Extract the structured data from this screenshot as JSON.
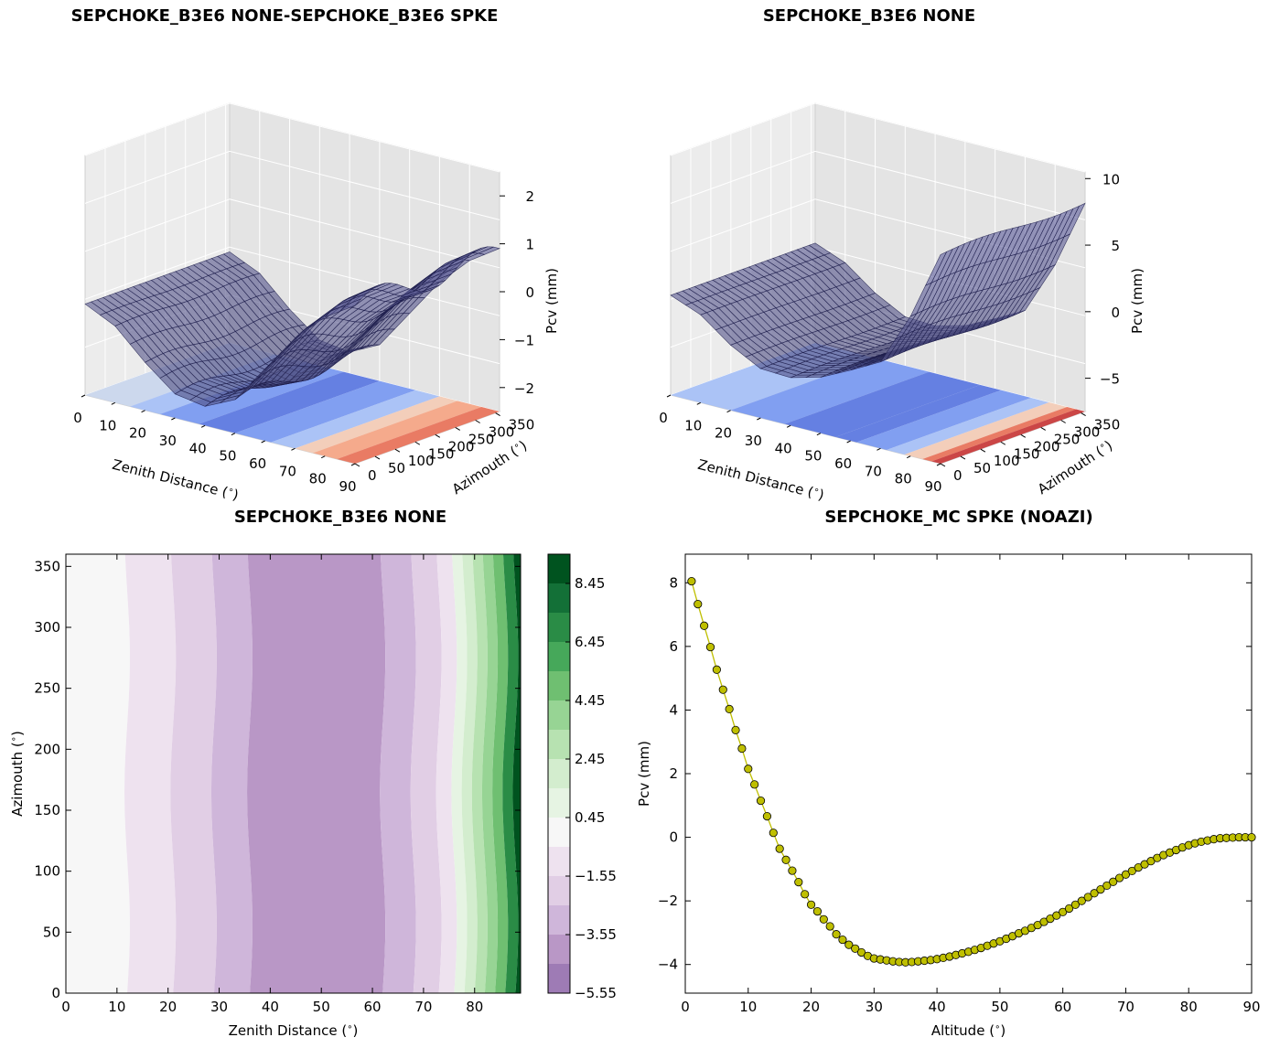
{
  "titles": {
    "tl": "SEPCHOKE_B3E6 NONE-SEPCHOKE_B3E6 SPKE",
    "tr": "SEPCHOKE_B3E6 NONE",
    "bl": "SEPCHOKE_B3E6 NONE",
    "br": "SEPCHOKE_MC SPKE  (NOAZI)"
  },
  "chart_data": [
    {
      "type": "surface",
      "title": "SEPCHOKE_B3E6 NONE-SEPCHOKE_B3E6 SPKE",
      "xlabel": "Zenith Distance ($^\\circ$)",
      "xlabel_text": "Zenith Distance (",
      "xlabel_end": ")",
      "ylabel_text": "Azimouth (",
      "ylabel_end": ")",
      "zlabel": "Pcv (mm)",
      "x_ticks": [
        "0",
        "10",
        "20",
        "30",
        "40",
        "50",
        "60",
        "70",
        "80",
        "90"
      ],
      "y_ticks": [
        "0",
        "50",
        "100",
        "150",
        "200",
        "250",
        "300",
        "350"
      ],
      "z_ticks": [
        "−2",
        "−1",
        "0",
        "1",
        "2"
      ],
      "profile_zenith": [
        0,
        10,
        20,
        30,
        40,
        50,
        60,
        70,
        80,
        90
      ],
      "profile_pcv": [
        -0.6,
        -0.9,
        -1.5,
        -2.0,
        -2.1,
        -1.8,
        -1.0,
        -0.2,
        0.4,
        0.8
      ],
      "zlim": [
        -2.5,
        2.5
      ]
    },
    {
      "type": "surface",
      "title": "SEPCHOKE_B3E6 NONE",
      "xlabel_text": "Zenith Distance (",
      "xlabel_end": ")",
      "ylabel_text": "Azimouth (",
      "ylabel_end": ")",
      "zlabel": "Pcv (mm)",
      "x_ticks": [
        "0",
        "10",
        "20",
        "30",
        "40",
        "50",
        "60",
        "70",
        "80",
        "90"
      ],
      "y_ticks": [
        "0",
        "50",
        "100",
        "150",
        "200",
        "250",
        "300",
        "350"
      ],
      "z_ticks": [
        "−5",
        "0",
        "5",
        "10"
      ],
      "profile_zenith": [
        0,
        10,
        20,
        30,
        40,
        50,
        60,
        70,
        80,
        90
      ],
      "profile_pcv": [
        0.0,
        -0.9,
        -2.6,
        -3.8,
        -3.9,
        -3.3,
        -2.2,
        -1.0,
        3.0,
        8.2
      ],
      "zlim": [
        -7.5,
        10.5
      ]
    },
    {
      "type": "heatmap",
      "title": "SEPCHOKE_B3E6 NONE",
      "xlabel_text": "Zenith Distance (",
      "xlabel_end": ")",
      "ylabel_text": "Azimouth (",
      "ylabel_end": ")",
      "x_ticks": [
        "0",
        "10",
        "20",
        "30",
        "40",
        "50",
        "60",
        "70",
        "80"
      ],
      "y_ticks": [
        "0",
        "50",
        "100",
        "150",
        "200",
        "250",
        "300",
        "350"
      ],
      "xlim": [
        0,
        89
      ],
      "ylim": [
        0,
        360
      ],
      "colorbar_ticks": [
        "8.45",
        "6.45",
        "4.45",
        "2.45",
        "0.45",
        "−1.55",
        "−3.55",
        "−5.55"
      ],
      "colorbar_levels": [
        -5.55,
        -4.55,
        -3.55,
        -2.55,
        -1.55,
        -0.55,
        0.45,
        1.45,
        2.45,
        3.45,
        4.45,
        5.45,
        6.45,
        7.45,
        8.45,
        9.45
      ],
      "colorbar_colors": [
        "#9e7bb5",
        "#b997c6",
        "#cfb6da",
        "#e1cee5",
        "#eee2ef",
        "#f7f7f7",
        "#e6f4e3",
        "#d3edce",
        "#b7e2b1",
        "#97d494",
        "#6fbf71",
        "#46a85a",
        "#2a8c46",
        "#137037",
        "#00531f"
      ],
      "bands_zenith_edges": [
        0,
        12,
        21,
        29,
        36,
        62,
        68,
        73,
        76,
        78,
        80,
        82,
        84,
        86,
        88,
        89
      ],
      "bands_level_index": [
        5,
        4,
        3,
        2,
        1,
        2,
        3,
        4,
        6,
        7,
        8,
        9,
        10,
        12,
        14
      ]
    },
    {
      "type": "line",
      "title": "SEPCHOKE_MC SPKE  (NOAZI)",
      "xlabel_text": "Altitude (",
      "xlabel_end": ")",
      "ylabel": "Pcv (mm)",
      "xlim": [
        0,
        90
      ],
      "ylim": [
        -4.9,
        8.9
      ],
      "x_ticks": [
        0,
        10,
        20,
        30,
        40,
        50,
        60,
        70,
        80,
        90
      ],
      "y_ticks": [
        -4,
        -2,
        0,
        2,
        4,
        6,
        8
      ],
      "line_color": "#bfbf00",
      "marker_color": "#bfbf00",
      "x": [
        1,
        2,
        3,
        4,
        5,
        6,
        7,
        8,
        9,
        10,
        11,
        12,
        13,
        14,
        15,
        16,
        17,
        18,
        19,
        20,
        21,
        22,
        23,
        24,
        25,
        26,
        27,
        28,
        29,
        30,
        31,
        32,
        33,
        34,
        35,
        36,
        37,
        38,
        39,
        40,
        41,
        42,
        43,
        44,
        45,
        46,
        47,
        48,
        49,
        50,
        51,
        52,
        53,
        54,
        55,
        56,
        57,
        58,
        59,
        60,
        61,
        62,
        63,
        64,
        65,
        66,
        67,
        68,
        69,
        70,
        71,
        72,
        73,
        74,
        75,
        76,
        77,
        78,
        79,
        80,
        81,
        82,
        83,
        84,
        85,
        86,
        87,
        88,
        89,
        90
      ],
      "y": [
        8.05,
        7.33,
        6.65,
        5.98,
        5.27,
        4.64,
        4.03,
        3.37,
        2.79,
        2.15,
        1.66,
        1.15,
        0.66,
        0.14,
        -0.36,
        -0.71,
        -1.05,
        -1.41,
        -1.79,
        -2.12,
        -2.33,
        -2.58,
        -2.8,
        -3.05,
        -3.22,
        -3.38,
        -3.5,
        -3.62,
        -3.73,
        -3.81,
        -3.84,
        -3.87,
        -3.9,
        -3.92,
        -3.93,
        -3.92,
        -3.9,
        -3.88,
        -3.86,
        -3.83,
        -3.79,
        -3.75,
        -3.7,
        -3.65,
        -3.6,
        -3.54,
        -3.48,
        -3.41,
        -3.34,
        -3.27,
        -3.19,
        -3.11,
        -3.02,
        -2.94,
        -2.85,
        -2.76,
        -2.66,
        -2.56,
        -2.46,
        -2.35,
        -2.24,
        -2.12,
        -2.0,
        -1.88,
        -1.76,
        -1.64,
        -1.52,
        -1.4,
        -1.28,
        -1.17,
        -1.06,
        -0.95,
        -0.85,
        -0.75,
        -0.65,
        -0.56,
        -0.48,
        -0.4,
        -0.32,
        -0.25,
        -0.19,
        -0.14,
        -0.1,
        -0.06,
        -0.03,
        -0.02,
        -0.01,
        0.0,
        0.0,
        0.0
      ]
    }
  ]
}
